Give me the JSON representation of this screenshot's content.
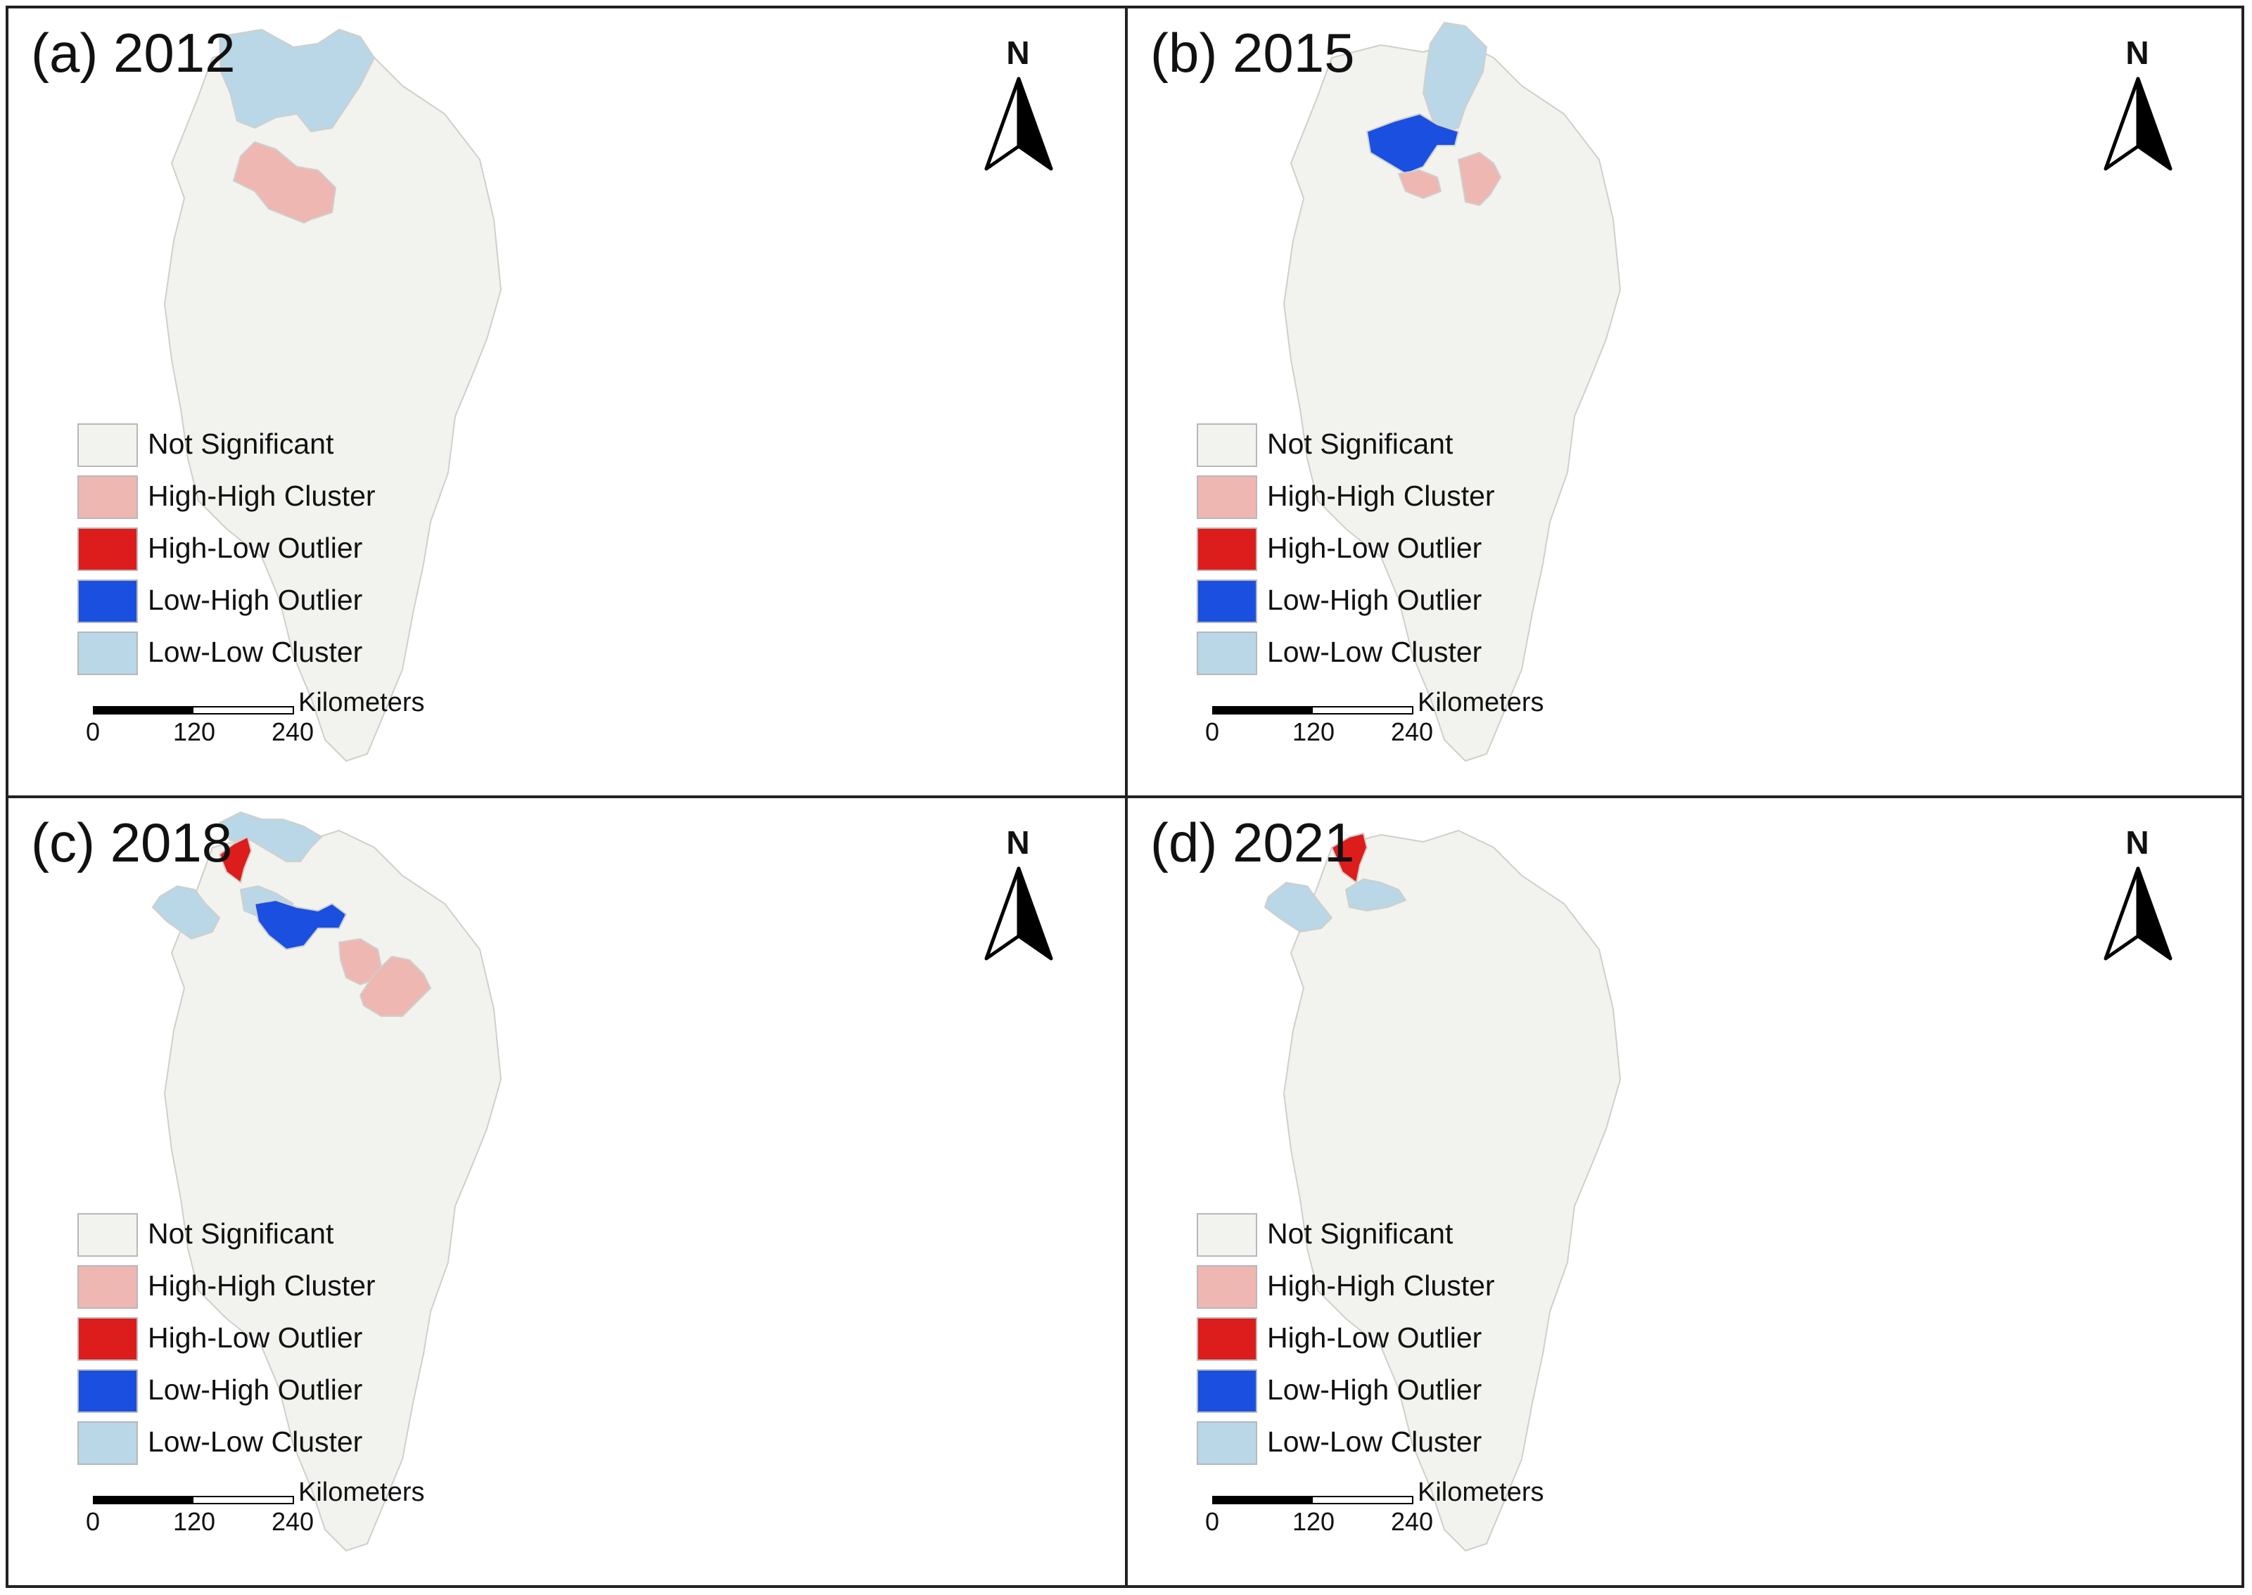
{
  "legend": {
    "items": [
      {
        "label": "Not Significant",
        "color": "#f2f2ef"
      },
      {
        "label": "High-High Cluster",
        "color": "#efb7b2"
      },
      {
        "label": "High-Low Outlier",
        "color": "#dd1c1c"
      },
      {
        "label": "Low-High Outlier",
        "color": "#1a4fe0"
      },
      {
        "label": "Low-Low Cluster",
        "color": "#b9d7e6"
      }
    ]
  },
  "scale_bar": {
    "unit": "Kilometers",
    "ticks": [
      "0",
      "120",
      "240"
    ]
  },
  "north_arrow": {
    "label": "N",
    "icon": "north-arrow-icon"
  },
  "panels": [
    {
      "title": "(a) 2012"
    },
    {
      "title": "(b) 2015"
    },
    {
      "title": "(c) 2018"
    },
    {
      "title": "(d) 2021"
    }
  ],
  "colors": {
    "border": "#222222",
    "region_stroke": "#cfcfcb",
    "base": "#f2f2ef"
  }
}
